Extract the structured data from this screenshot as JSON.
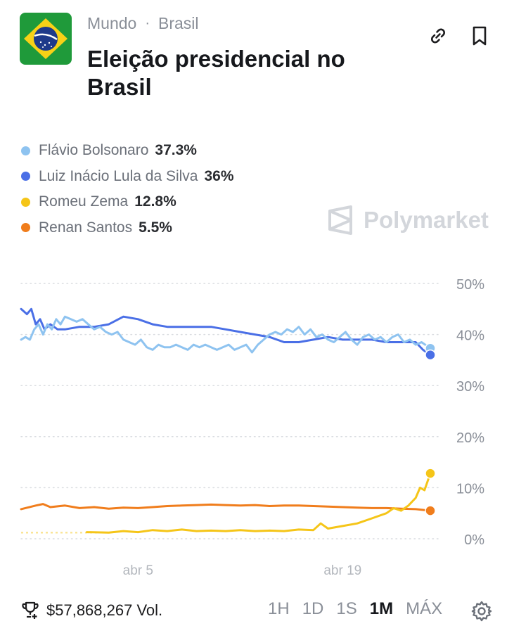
{
  "header": {
    "category": "Mundo",
    "subcategory": "Brasil",
    "title": "Eleição presidencial no Brasil",
    "link_icon": "link-icon",
    "bookmark_icon": "bookmark-icon"
  },
  "brand": {
    "name": "Polymarket"
  },
  "legend": [
    {
      "name": "Flávio Bolsonaro",
      "pct": "37.3%",
      "color": "#8ec3f0"
    },
    {
      "name": "Luiz Inácio Lula da Silva",
      "pct": "36%",
      "color": "#4a6fe6"
    },
    {
      "name": "Romeu Zema",
      "pct": "12.8%",
      "color": "#f5c518"
    },
    {
      "name": "Renan Santos",
      "pct": "5.5%",
      "color": "#f07d1c"
    }
  ],
  "chart_data": {
    "type": "line",
    "xlabel": "",
    "ylabel": "",
    "x_range": [
      0,
      28
    ],
    "ylim": [
      0,
      50
    ],
    "yticks": [
      0,
      10,
      20,
      30,
      40,
      50
    ],
    "ytick_labels": [
      "0%",
      "10%",
      "20%",
      "30%",
      "40%",
      "50%"
    ],
    "xticks": [
      {
        "x": 8,
        "label": "abr 5"
      },
      {
        "x": 22,
        "label": "abr 19"
      }
    ],
    "grid": true,
    "series": [
      {
        "name": "Flávio Bolsonaro",
        "color": "#8ec3f0",
        "x": [
          0,
          0.3,
          0.6,
          0.9,
          1.2,
          1.5,
          1.8,
          2.1,
          2.4,
          2.7,
          3,
          3.4,
          3.8,
          4.2,
          4.6,
          5,
          5.4,
          5.8,
          6.2,
          6.6,
          7,
          7.4,
          7.8,
          8.2,
          8.6,
          9,
          9.4,
          9.8,
          10.2,
          10.6,
          11,
          11.4,
          11.8,
          12.2,
          12.6,
          13,
          13.4,
          13.8,
          14.2,
          14.6,
          15,
          15.4,
          15.8,
          16.2,
          16.6,
          17,
          17.4,
          17.8,
          18.2,
          18.6,
          19,
          19.4,
          19.8,
          20.2,
          20.6,
          21,
          21.4,
          21.8,
          22.2,
          22.6,
          23,
          23.4,
          23.8,
          24.2,
          24.6,
          25,
          25.4,
          25.8,
          26.2,
          26.6,
          27,
          27.4,
          28
        ],
        "y": [
          39,
          39.5,
          39,
          41,
          42,
          40,
          42,
          41,
          43,
          42,
          43.5,
          43,
          42.5,
          43,
          42,
          41,
          41.5,
          40.5,
          40,
          40.5,
          39,
          38.5,
          38,
          39,
          37.5,
          37,
          38,
          37.5,
          37.5,
          38,
          37.5,
          37,
          38,
          37.5,
          38,
          37.5,
          37,
          37.5,
          38,
          37,
          37.5,
          38,
          36.5,
          38,
          39,
          40,
          40.5,
          40,
          41,
          40.5,
          41.5,
          40,
          41,
          39.5,
          40,
          39,
          38.5,
          39.5,
          40.5,
          39,
          38,
          39.5,
          40,
          39,
          39.5,
          38.5,
          39.5,
          40,
          38.5,
          39,
          38,
          38.5,
          37.3
        ]
      },
      {
        "name": "Luiz Inácio Lula da Silva",
        "color": "#4a6fe6",
        "x": [
          0,
          0.4,
          0.7,
          1,
          1.3,
          1.6,
          2,
          2.5,
          3,
          4,
          5,
          6,
          7,
          8,
          9,
          10,
          11,
          12,
          13,
          14,
          15,
          16,
          17,
          18,
          19,
          20,
          21,
          22,
          23,
          24,
          25,
          26,
          27,
          27.5,
          28
        ],
        "y": [
          45,
          44,
          45,
          42,
          43,
          41,
          42,
          41,
          41,
          41.5,
          41.5,
          42,
          43.5,
          43,
          42,
          41.5,
          41.5,
          41.5,
          41.5,
          41,
          40.5,
          40,
          39.5,
          38.5,
          38.5,
          39,
          39.5,
          39,
          39,
          39,
          38.5,
          38.5,
          38.5,
          37,
          36
        ]
      },
      {
        "name": "Romeu Zema",
        "color": "#f5c518",
        "x": [
          0,
          3,
          6,
          7,
          8,
          9,
          10,
          11,
          12,
          13,
          14,
          15,
          16,
          17,
          18,
          19,
          20,
          20.5,
          21,
          22,
          23,
          24,
          25,
          25.5,
          26,
          26.5,
          27,
          27.3,
          27.6,
          28
        ],
        "y": [
          1.2,
          1.2,
          1.2,
          1.5,
          1.3,
          1.7,
          1.5,
          1.8,
          1.5,
          1.6,
          1.5,
          1.7,
          1.5,
          1.6,
          1.5,
          1.8,
          1.7,
          3,
          2,
          2.5,
          3,
          4,
          5,
          6,
          5.5,
          6.5,
          8,
          10,
          9.5,
          12.8
        ]
      },
      {
        "name": "Renan Santos",
        "color": "#f07d1c",
        "x": [
          0,
          1,
          1.5,
          2,
          3,
          4,
          5,
          6,
          7,
          8,
          9,
          10,
          11,
          12,
          13,
          14,
          15,
          16,
          17,
          18,
          19,
          20,
          21,
          22,
          23,
          24,
          25,
          26,
          27,
          28
        ],
        "y": [
          5.8,
          6.5,
          6.8,
          6.2,
          6.5,
          6,
          6.2,
          5.9,
          6.1,
          6,
          6.2,
          6.4,
          6.5,
          6.6,
          6.7,
          6.6,
          6.5,
          6.6,
          6.4,
          6.5,
          6.5,
          6.4,
          6.3,
          6.2,
          6.1,
          6,
          6,
          5.9,
          5.8,
          5.5
        ]
      }
    ]
  },
  "footer": {
    "volume": "$57,868,267 Vol.",
    "ranges": [
      "1H",
      "1D",
      "1S",
      "1M",
      "MÁX"
    ],
    "active_range": "1M"
  }
}
